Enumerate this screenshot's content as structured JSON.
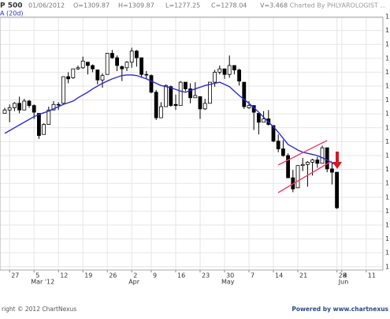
{
  "chart_data": {
    "type": "candlestick",
    "title": "P 500",
    "info": [
      "01/06/2012",
      "O=1309.87",
      "H=1309.87",
      "L=1277.25",
      "C=1278.04",
      "V=3.468"
    ],
    "watermark": "Charted By PHLYAROLOGIST ...",
    "footer_left": "right © 2012 ChartNexus",
    "footer_right": "Powered by www.chartnexus",
    "x": [
      "2012-02-24",
      "2012-02-27",
      "2012-02-28",
      "2012-02-29",
      "2012-03-01",
      "2012-03-02",
      "2012-03-05",
      "2012-03-06",
      "2012-03-07",
      "2012-03-08",
      "2012-03-09",
      "2012-03-12",
      "2012-03-13",
      "2012-03-14",
      "2012-03-15",
      "2012-03-16",
      "2012-03-19",
      "2012-03-20",
      "2012-03-21",
      "2012-03-22",
      "2012-03-23",
      "2012-03-26",
      "2012-03-27",
      "2012-03-28",
      "2012-03-29",
      "2012-03-30",
      "2012-04-02",
      "2012-04-03",
      "2012-04-04",
      "2012-04-05",
      "2012-04-09",
      "2012-04-10",
      "2012-04-11",
      "2012-04-12",
      "2012-04-13",
      "2012-04-16",
      "2012-04-17",
      "2012-04-18",
      "2012-04-19",
      "2012-04-20",
      "2012-04-23",
      "2012-04-24",
      "2012-04-25",
      "2012-04-26",
      "2012-04-27",
      "2012-04-30",
      "2012-05-01",
      "2012-05-02",
      "2012-05-03",
      "2012-05-04",
      "2012-05-07",
      "2012-05-08",
      "2012-05-09",
      "2012-05-10",
      "2012-05-11",
      "2012-05-14",
      "2012-05-15",
      "2012-05-16",
      "2012-05-17",
      "2012-05-18",
      "2012-05-21",
      "2012-05-22",
      "2012-05-23",
      "2012-05-24",
      "2012-05-25",
      "2012-05-29",
      "2012-05-30",
      "2012-05-31",
      "2012-06-01"
    ],
    "open": [
      1363,
      1366,
      1368,
      1372,
      1366,
      1374,
      1370,
      1363,
      1344,
      1353,
      1366,
      1371,
      1372,
      1396,
      1395,
      1403,
      1404,
      1409,
      1406,
      1402,
      1393,
      1398,
      1417,
      1413,
      1405,
      1404,
      1409,
      1419,
      1413,
      1398,
      1397,
      1382,
      1359,
      1369,
      1387,
      1371,
      1370,
      1391,
      1385,
      1377,
      1378,
      1367,
      1372,
      1391,
      1400,
      1403,
      1398,
      1406,
      1402,
      1391,
      1368,
      1370,
      1363,
      1355,
      1358,
      1352,
      1338,
      1331,
      1325,
      1305,
      1296,
      1316,
      1317,
      1319,
      1321,
      1318,
      1332,
      1313,
      1310
    ],
    "high": [
      1368,
      1371,
      1373,
      1378,
      1376,
      1375,
      1371,
      1363,
      1354,
      1369,
      1374,
      1373,
      1396,
      1400,
      1403,
      1406,
      1414,
      1409,
      1407,
      1402,
      1399,
      1417,
      1420,
      1415,
      1406,
      1410,
      1422,
      1420,
      1413,
      1401,
      1398,
      1384,
      1373,
      1389,
      1388,
      1380,
      1392,
      1391,
      1390,
      1391,
      1378,
      1376,
      1391,
      1402,
      1406,
      1403,
      1415,
      1406,
      1403,
      1391,
      1374,
      1370,
      1363,
      1365,
      1366,
      1352,
      1344,
      1339,
      1327,
      1312,
      1316,
      1323,
      1320,
      1322,
      1324,
      1334,
      1332,
      1319,
      1310
    ],
    "low": [
      1363,
      1355,
      1365,
      1363,
      1366,
      1368,
      1358,
      1340,
      1344,
      1353,
      1366,
      1366,
      1371,
      1390,
      1394,
      1402,
      1403,
      1398,
      1400,
      1389,
      1386,
      1398,
      1412,
      1401,
      1392,
      1401,
      1404,
      1405,
      1395,
      1394,
      1381,
      1357,
      1359,
      1369,
      1369,
      1366,
      1370,
      1383,
      1372,
      1377,
      1358,
      1366,
      1372,
      1387,
      1398,
      1394,
      1395,
      1398,
      1388,
      1367,
      1367,
      1348,
      1344,
      1355,
      1352,
      1337,
      1328,
      1324,
      1305,
      1292,
      1296,
      1311,
      1297,
      1307,
      1314,
      1318,
      1310,
      1299,
      1277
    ],
    "close": [
      1366,
      1368,
      1372,
      1366,
      1374,
      1370,
      1364,
      1343,
      1353,
      1366,
      1371,
      1371,
      1396,
      1394,
      1403,
      1404,
      1410,
      1406,
      1403,
      1393,
      1397,
      1417,
      1413,
      1406,
      1403,
      1409,
      1419,
      1413,
      1398,
      1398,
      1382,
      1359,
      1369,
      1388,
      1370,
      1370,
      1391,
      1385,
      1377,
      1379,
      1367,
      1372,
      1391,
      1400,
      1403,
      1398,
      1406,
      1402,
      1392,
      1369,
      1370,
      1364,
      1355,
      1358,
      1353,
      1338,
      1331,
      1325,
      1305,
      1295,
      1316,
      1317,
      1319,
      1321,
      1318,
      1332,
      1313,
      1310,
      1278
    ],
    "up_color": "#ffffff",
    "down_color": "#000000",
    "outline_color": "#000000",
    "ma": {
      "name": "A (20d)",
      "color": "#2b2bd6",
      "values": [
        1345,
        1347.5,
        1350,
        1352.5,
        1355,
        1357.5,
        1360,
        1362,
        1363.5,
        1365,
        1367,
        1369,
        1371,
        1372.5,
        1374,
        1377,
        1379.5,
        1382,
        1385,
        1387.5,
        1390,
        1392,
        1394,
        1395.5,
        1397,
        1397.5,
        1397.5,
        1397,
        1395.5,
        1394,
        1392,
        1390,
        1388,
        1387,
        1386,
        1384.5,
        1383,
        1382,
        1383.5,
        1385,
        1386.5,
        1388,
        1389,
        1390,
        1391,
        1389,
        1387,
        1383,
        1379,
        1375.5,
        1372,
        1368,
        1364,
        1359.5,
        1355,
        1351,
        1346,
        1340.5,
        1335,
        1332.5,
        1330,
        1328,
        1327,
        1326,
        1325,
        1323,
        1321,
        1318.5,
        1316
      ]
    },
    "ylim": [
      1222,
      1455
    ],
    "yticks": [
      {
        "value": 1225,
        "label": "1"
      },
      {
        "value": 1237.5,
        "label": "1"
      },
      {
        "value": 1250,
        "label": "1"
      },
      {
        "value": 1262.5,
        "label": "1"
      },
      {
        "value": 1275,
        "label": "1"
      },
      {
        "value": 1287.5,
        "label": "1"
      },
      {
        "value": 1300,
        "label": "1"
      },
      {
        "value": 1312.5,
        "label": "1"
      },
      {
        "value": 1325,
        "label": "1"
      },
      {
        "value": 1337.5,
        "label": "1"
      },
      {
        "value": 1350,
        "label": "1"
      },
      {
        "value": 1362.5,
        "label": "1"
      },
      {
        "value": 1375,
        "label": "1"
      },
      {
        "value": 1387.5,
        "label": "1"
      },
      {
        "value": 1400,
        "label": "1"
      },
      {
        "value": 1412.5,
        "label": "1"
      },
      {
        "value": 1425,
        "label": "1"
      },
      {
        "value": 1437.5,
        "label": "1"
      },
      {
        "value": 1450,
        "label": "1"
      }
    ],
    "xticks": [
      {
        "value": "2012-02-27",
        "label": "27"
      },
      {
        "value": "2012-03-05",
        "label": "5"
      },
      {
        "value": "2012-03-12",
        "label": "12"
      },
      {
        "value": "2012-03-19",
        "label": "19"
      },
      {
        "value": "2012-03-26",
        "label": "26"
      },
      {
        "value": "2012-04-02",
        "label": "2"
      },
      {
        "value": "2012-04-09",
        "label": "9"
      },
      {
        "value": "2012-04-16",
        "label": "16"
      },
      {
        "value": "2012-04-23",
        "label": "23"
      },
      {
        "value": "2012-04-30",
        "label": "30"
      },
      {
        "value": "2012-05-07",
        "label": "7"
      },
      {
        "value": "2012-05-14",
        "label": "14"
      },
      {
        "value": "2012-05-21",
        "label": "21"
      },
      {
        "value": "2012-05-28",
        "label": "28"
      },
      {
        "value": "2012-06-04",
        "label": "4"
      },
      {
        "value": "2012-06-11",
        "label": "11"
      }
    ],
    "month_ticks": [
      {
        "value": "2012-03-05",
        "label": "Mar '12"
      },
      {
        "value": "2012-04-02",
        "label": "Apr"
      },
      {
        "value": "2012-04-30",
        "label": "May"
      },
      {
        "value": "2012-06-04",
        "label": "Jun"
      }
    ],
    "grid": true
  }
}
